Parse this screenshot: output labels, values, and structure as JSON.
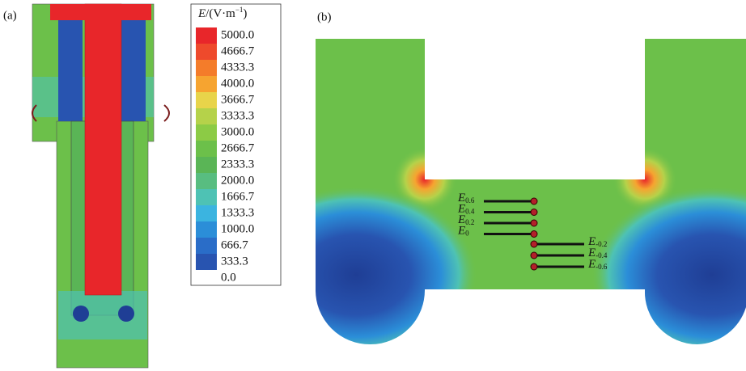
{
  "panel_a": {
    "label": "(a)"
  },
  "panel_b": {
    "label": "(b)"
  },
  "colorbar": {
    "title": {
      "symbol": "E",
      "unit": "/(V·m",
      "exponent": "−1",
      "close": ")"
    },
    "levels": [
      "5000.0",
      "4666.7",
      "4333.3",
      "4000.0",
      "3666.7",
      "3333.3",
      "3000.0",
      "2666.7",
      "2333.3",
      "2000.0",
      "1666.7",
      "1333.3",
      "1000.0",
      "666.7",
      "333.3",
      "0.0"
    ]
  },
  "probes": {
    "left": [
      {
        "main": "E",
        "sub": "0.6"
      },
      {
        "main": "E",
        "sub": "0.4"
      },
      {
        "main": "E",
        "sub": "0.2"
      },
      {
        "main": "E",
        "sub": "0"
      }
    ],
    "right": [
      {
        "main": "E",
        "sub": "-0.2"
      },
      {
        "main": "E",
        "sub": "-0.4"
      },
      {
        "main": "E",
        "sub": "-0.6"
      }
    ]
  }
}
